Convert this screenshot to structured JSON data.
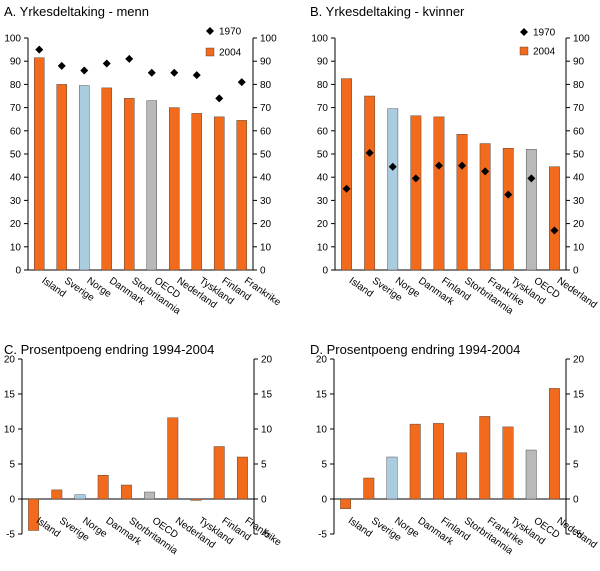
{
  "colors": {
    "orange": "#f26b1d",
    "blue": "#a9cce0",
    "grey": "#b9b9b9",
    "marker": "#000000",
    "axis": "#000000"
  },
  "chart_data": [
    {
      "id": "A",
      "type": "bar",
      "title": "A. Yrkesdeltaking - menn",
      "ylim": [
        0,
        100
      ],
      "yticks": [
        0,
        10,
        20,
        30,
        40,
        50,
        60,
        70,
        80,
        90,
        100
      ],
      "yticklabels": [
        "0",
        "10",
        "20",
        "30",
        "40",
        "50",
        "60",
        "70",
        "80",
        "90",
        "100"
      ],
      "categories": [
        "Island",
        "Sverige",
        "Norge",
        "Danmark",
        "Storbritannia",
        "OECD",
        "Nederland",
        "Tyskland",
        "Finland",
        "Frankrike"
      ],
      "series": [
        {
          "name": "2004",
          "kind": "bar",
          "values": [
            91.5,
            80,
            79.5,
            78.5,
            74,
            73,
            70,
            67.5,
            66,
            64.5
          ]
        },
        {
          "name": "1970",
          "kind": "marker",
          "values": [
            95,
            88,
            86,
            89,
            91,
            85,
            85,
            84,
            74,
            81
          ]
        }
      ],
      "bar_colors": [
        "orange",
        "orange",
        "blue",
        "orange",
        "orange",
        "grey",
        "orange",
        "orange",
        "orange",
        "orange"
      ],
      "legend": [
        "1970",
        "2004"
      ]
    },
    {
      "id": "B",
      "type": "bar",
      "title": "B. Yrkesdeltaking - kvinner",
      "ylim": [
        0,
        100
      ],
      "yticks": [
        0,
        10,
        20,
        30,
        40,
        50,
        60,
        70,
        80,
        90,
        100
      ],
      "yticklabels": [
        "0",
        "10",
        "20",
        "30",
        "40",
        "50",
        "60",
        "70",
        "80",
        "90",
        "100"
      ],
      "categories": [
        "Island",
        "Sverige",
        "Norge",
        "Danmark",
        "Finland",
        "Storbritannia",
        "Frankrike",
        "Tyskland",
        "OECD",
        "Nederland"
      ],
      "series": [
        {
          "name": "2004",
          "kind": "bar",
          "values": [
            82.5,
            75,
            69.5,
            66.5,
            66,
            58.5,
            54.5,
            52.5,
            52,
            44.5
          ]
        },
        {
          "name": "1970",
          "kind": "marker",
          "values": [
            35,
            50.5,
            44.5,
            39.5,
            45,
            45,
            42.5,
            32.5,
            39.5,
            17
          ]
        }
      ],
      "bar_colors": [
        "orange",
        "orange",
        "blue",
        "orange",
        "orange",
        "orange",
        "orange",
        "orange",
        "grey",
        "orange"
      ],
      "legend": [
        "1970",
        "2004"
      ]
    },
    {
      "id": "C",
      "type": "bar",
      "title": "C. Prosentpoeng endring 1994-2004",
      "ylim": [
        -5,
        20
      ],
      "yticks": [
        -5,
        0,
        5,
        10,
        15,
        20
      ],
      "yticklabels": [
        "-5",
        "0",
        "5",
        "10",
        "15",
        "20"
      ],
      "categories": [
        "Island",
        "Sverige",
        "Norge",
        "Danmark",
        "Storbritannia",
        "OECD",
        "Nederland",
        "Tyskland",
        "Finland",
        "Frankrike"
      ],
      "series": [
        {
          "name": "Endring",
          "kind": "bar",
          "values": [
            -4.5,
            1.3,
            0.6,
            3.4,
            2.0,
            1.0,
            11.6,
            -0.2,
            7.5,
            6.0
          ]
        }
      ],
      "bar_colors": [
        "orange",
        "orange",
        "blue",
        "orange",
        "orange",
        "grey",
        "orange",
        "orange",
        "orange",
        "orange"
      ]
    },
    {
      "id": "D",
      "type": "bar",
      "title": "D. Prosentpoeng endring 1994-2004",
      "ylim": [
        -5,
        20
      ],
      "yticks": [
        -5,
        0,
        5,
        10,
        15,
        20
      ],
      "yticklabels": [
        "-5",
        "0",
        "5",
        "10",
        "15",
        "20"
      ],
      "categories": [
        "Island",
        "Sverige",
        "Norge",
        "Danmark",
        "Finland",
        "Storbritannia",
        "Frankrike",
        "Tyskland",
        "OECD",
        "Nederland"
      ],
      "series": [
        {
          "name": "Endring",
          "kind": "bar",
          "values": [
            -1.4,
            3.0,
            6.0,
            10.7,
            10.8,
            6.6,
            11.8,
            10.3,
            7.0,
            15.8
          ]
        }
      ],
      "bar_colors": [
        "orange",
        "orange",
        "blue",
        "orange",
        "orange",
        "orange",
        "orange",
        "orange",
        "grey",
        "orange"
      ]
    }
  ]
}
